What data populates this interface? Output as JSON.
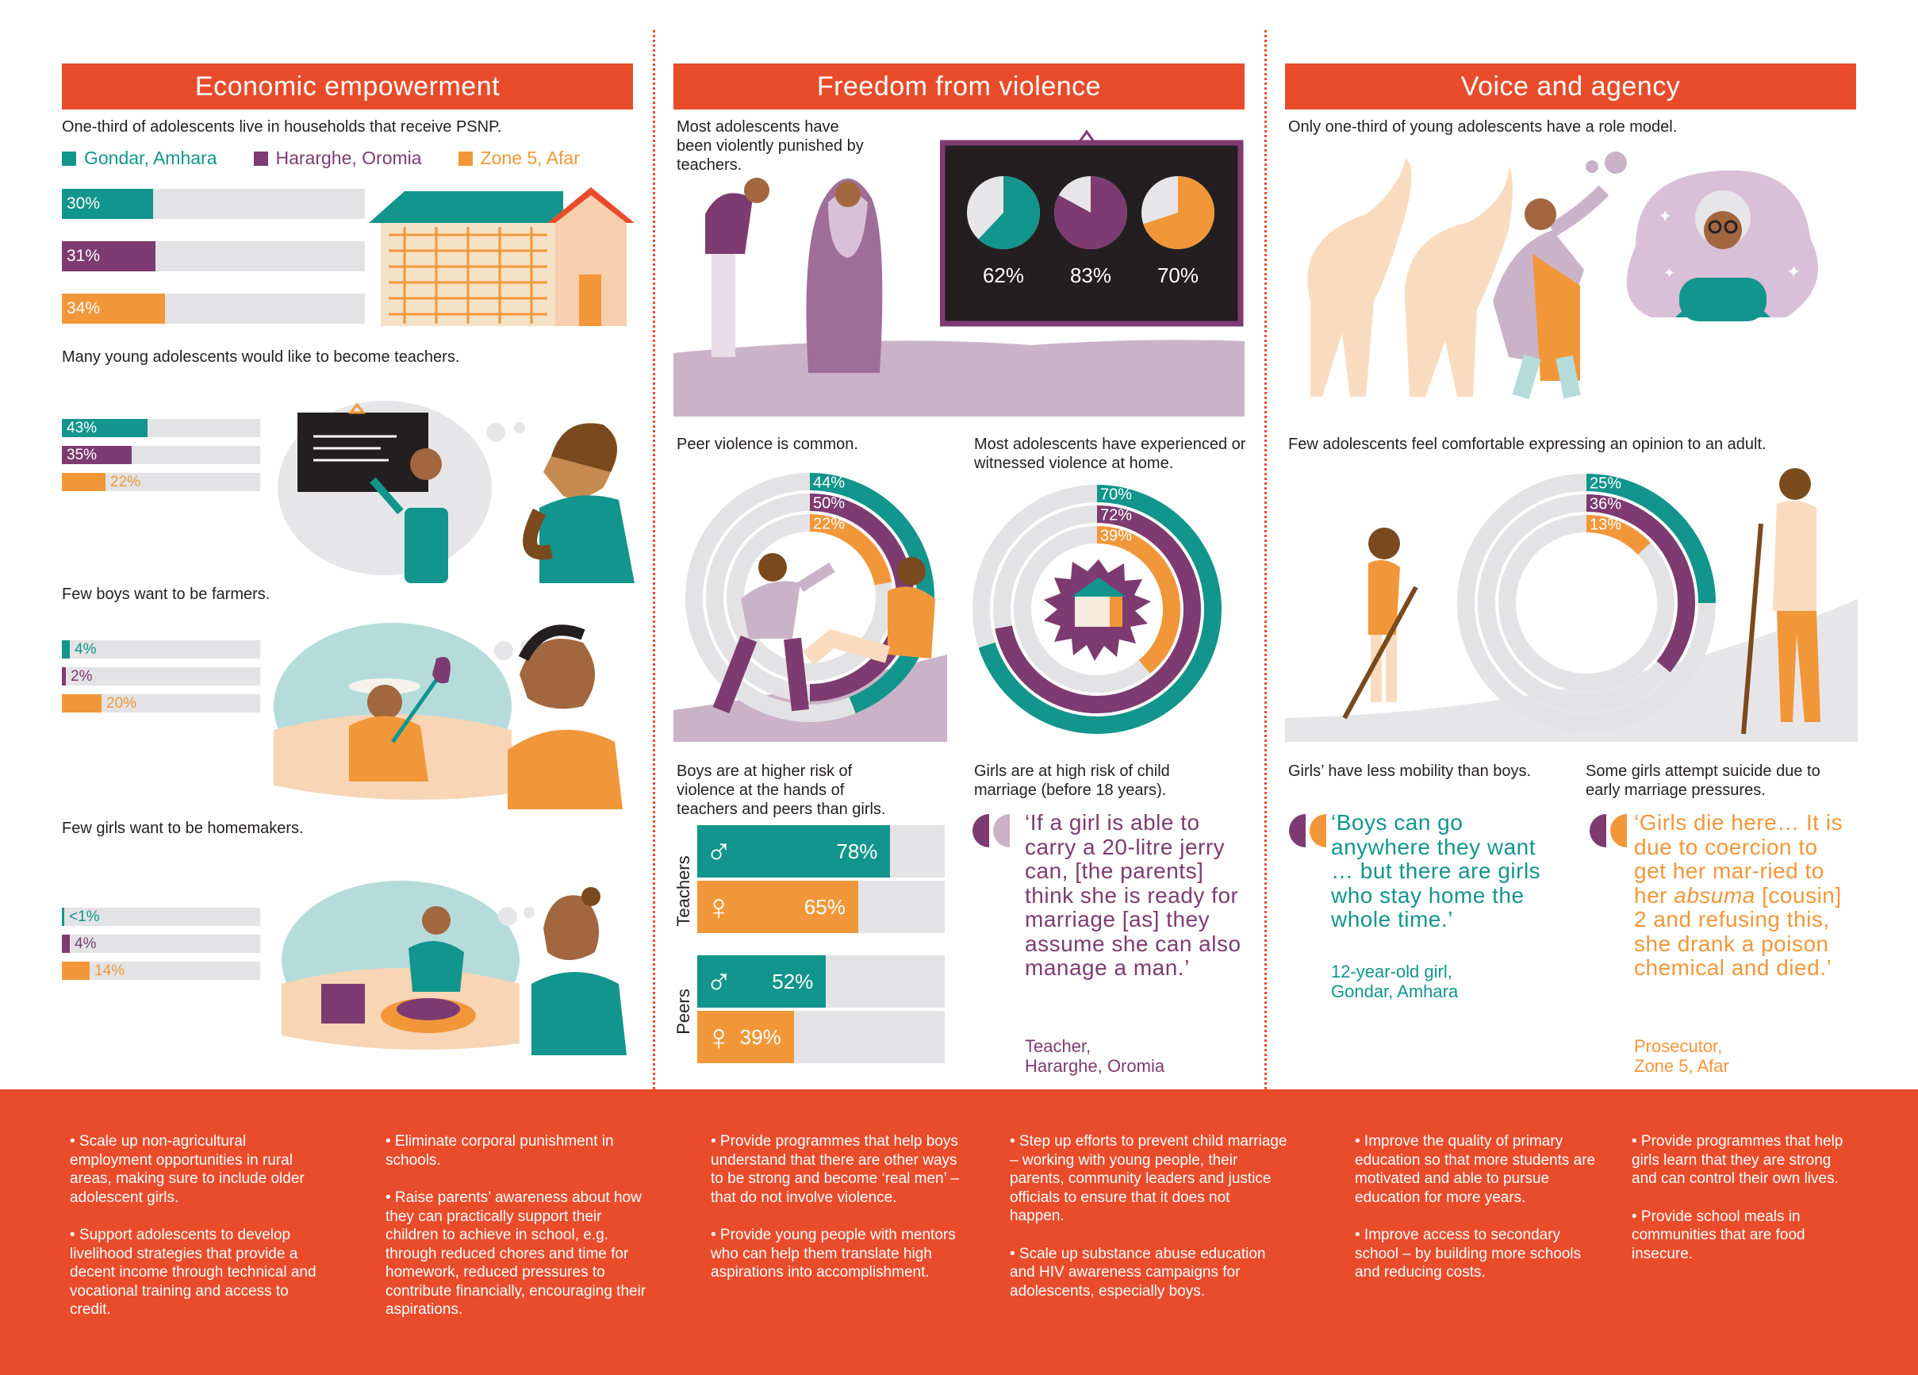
{
  "colors": {
    "orange_red": "#e84c2b",
    "teal": "#12958c",
    "purple": "#7d3b71",
    "orange": "#f29739",
    "gray": "#e3e3e5",
    "lilac": "#c9b3c9"
  },
  "sections": [
    {
      "title": "Economic empowerment"
    },
    {
      "title": "Freedom from violence"
    },
    {
      "title": "Voice and agency"
    }
  ],
  "legend": [
    {
      "label": "Gondar, Amhara",
      "color": "#12958c"
    },
    {
      "label": "Hararghe, Oromia",
      "color": "#7d3b71"
    },
    {
      "label": "Zone 5, Afar",
      "color": "#f29739"
    }
  ],
  "economic": {
    "psnp_caption": "One-third of adolescents live in households that receive PSNP.",
    "teachers_caption": "Many young adolescents would like to become teachers.",
    "farmers_caption": "Few boys want to be farmers.",
    "homemakers_caption": "Few girls want to be homemakers."
  },
  "violence": {
    "teachers_caption": "Most adolescents have been violently punished by teachers.",
    "peer_caption": "Peer violence is common.",
    "home_caption": "Most adolescents have experienced or witnessed violence at home.",
    "gender_caption": "Boys are at higher risk of violence at the hands of teachers and peers than girls.",
    "child_marriage_caption": "Girls are at high risk of child marriage (before 18 years).",
    "quote": "‘If a girl is able to carry a 20-litre jerry can, [the parents] think she is ready for marriage [as] they assume she can also manage a man.’",
    "quote_attr_1": "Teacher,",
    "quote_attr_2": "Hararghe, Oromia",
    "teachers_label": "Teachers",
    "peers_label": "Peers"
  },
  "voice": {
    "role_model_caption": "Only one-third of young adolescents have a role model.",
    "opinion_caption": "Few adolescents feel comfortable expressing an opinion to an adult.",
    "mobility_caption": "Girls’ have less mobility than boys.",
    "suicide_caption": "Some girls attempt suicide due to early marriage pressures.",
    "quote1": "‘Boys can go anywhere they want … but there are girls who stay home the whole time.’",
    "quote1_attr_1": "12-year-old girl,",
    "quote1_attr_2": "Gondar, Amhara",
    "quote2_pre": "‘Girls die here… It is due to coercion to get her mar-ried to her ",
    "quote2_em": "absuma",
    "quote2_post": " [cousin] 2 and refusing this, she drank a poison chemical and died.’",
    "quote2_attr_1": "Prosecutor,",
    "quote2_attr_2": "Zone 5, Afar"
  },
  "recommendations": [
    [
      "• Scale up non-agricultural employment opportunities in rural areas, making sure to include older adolescent girls.",
      "• Support adolescents to develop livelihood strategies that provide a decent income through technical and vocational training and access to credit."
    ],
    [
      "• Eliminate corporal punishment in schools.",
      "• Raise parents’ awareness about how they can practically support their children to achieve in school, e.g. through reduced chores and time for homework, reduced pressures to contribute financially, encouraging their aspirations."
    ],
    [
      "• Provide programmes that help boys understand that there are other ways to be strong and become ‘real men’ – that do not involve violence.",
      "• Provide young people with mentors who can help them translate high aspirations into accomplishment."
    ],
    [
      "• Step up efforts to prevent child marriage – working with young people, their parents, community leaders and justice officials to ensure that it does not happen.",
      "• Scale up substance abuse education and HIV awareness campaigns for adolescents, especially boys."
    ],
    [
      "• Improve the quality of primary education so that more students are motivated and able to pursue education for more years.",
      "• Improve access to secondary school – by building more schools and reducing costs."
    ],
    [
      "• Provide programmes that help girls learn that they are strong and can control their own lives.",
      "• Provide school meals in communities that are food insecure."
    ]
  ],
  "chart_data": [
    {
      "id": "psnp",
      "type": "bar",
      "categories": [
        "Gondar, Amhara",
        "Hararghe, Oromia",
        "Zone 5, Afar"
      ],
      "values": [
        30,
        31,
        34
      ],
      "labels": [
        "30%",
        "31%",
        "34%"
      ],
      "ylim": [
        0,
        100
      ]
    },
    {
      "id": "teachers_aspiration",
      "type": "bar",
      "categories": [
        "Gondar, Amhara",
        "Hararghe, Oromia",
        "Zone 5, Afar"
      ],
      "values": [
        43,
        35,
        22
      ],
      "labels": [
        "43%",
        "35%",
        "22%"
      ],
      "ylim": [
        0,
        100
      ]
    },
    {
      "id": "farmers",
      "type": "bar",
      "categories": [
        "Gondar, Amhara",
        "Hararghe, Oromia",
        "Zone 5, Afar"
      ],
      "values": [
        4,
        2,
        20
      ],
      "labels": [
        "4%",
        "2%",
        "20%"
      ],
      "ylim": [
        0,
        100
      ]
    },
    {
      "id": "homemakers",
      "type": "bar",
      "categories": [
        "Gondar, Amhara",
        "Hararghe, Oromia",
        "Zone 5, Afar"
      ],
      "values": [
        0.5,
        4,
        14
      ],
      "labels": [
        "<1%",
        "4%",
        "14%"
      ],
      "ylim": [
        0,
        100
      ]
    },
    {
      "id": "teacher_punishment",
      "type": "pie",
      "categories": [
        "Gondar, Amhara",
        "Hararghe, Oromia",
        "Zone 5, Afar"
      ],
      "values": [
        62,
        83,
        70
      ],
      "labels": [
        "62%",
        "83%",
        "70%"
      ]
    },
    {
      "id": "peer_violence",
      "type": "pie",
      "categories": [
        "Gondar, Amhara",
        "Hararghe, Oromia",
        "Zone 5, Afar"
      ],
      "values": [
        44,
        50,
        22
      ],
      "labels": [
        "44%",
        "50%",
        "22%"
      ]
    },
    {
      "id": "home_violence",
      "type": "pie",
      "categories": [
        "Gondar, Amhara",
        "Hararghe, Oromia",
        "Zone 5, Afar"
      ],
      "values": [
        70,
        72,
        39
      ],
      "labels": [
        "70%",
        "72%",
        "39%"
      ]
    },
    {
      "id": "opinion",
      "type": "pie",
      "categories": [
        "Gondar, Amhara",
        "Hararghe, Oromia",
        "Zone 5, Afar"
      ],
      "values": [
        25,
        36,
        13
      ],
      "labels": [
        "25%",
        "36%",
        "13%"
      ]
    },
    {
      "id": "gender_risk",
      "type": "bar",
      "categories": [
        "Teachers",
        "Peers"
      ],
      "series": [
        {
          "values": [
            78,
            52
          ],
          "labels": [
            "78%",
            "52%"
          ]
        },
        {
          "values": [
            65,
            39
          ],
          "labels": [
            "65%",
            "39%"
          ]
        }
      ],
      "ylim": [
        0,
        100
      ]
    }
  ]
}
